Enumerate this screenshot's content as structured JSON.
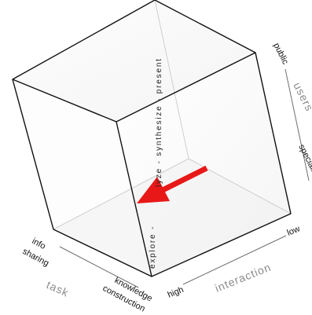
{
  "diagram": {
    "task_axis": {
      "title": "task",
      "low_label_line1": "info",
      "low_label_line2": "sharing",
      "high_label_line1": "knowledge",
      "high_label_line2": "construction"
    },
    "interaction_axis": {
      "title": "interaction",
      "low_label": "low",
      "high_label": "high"
    },
    "users_axis": {
      "title": "users",
      "low_label": "specialists",
      "high_label": "public"
    },
    "spine_label": "explore - analyze - synthesize - present",
    "spine_label_part1": "explore -",
    "spine_label_part2": "lyze - synthesize - present",
    "colors": {
      "arrow": "#e81818",
      "edge": "#111111",
      "axis_title": "#8a8a8a"
    }
  }
}
